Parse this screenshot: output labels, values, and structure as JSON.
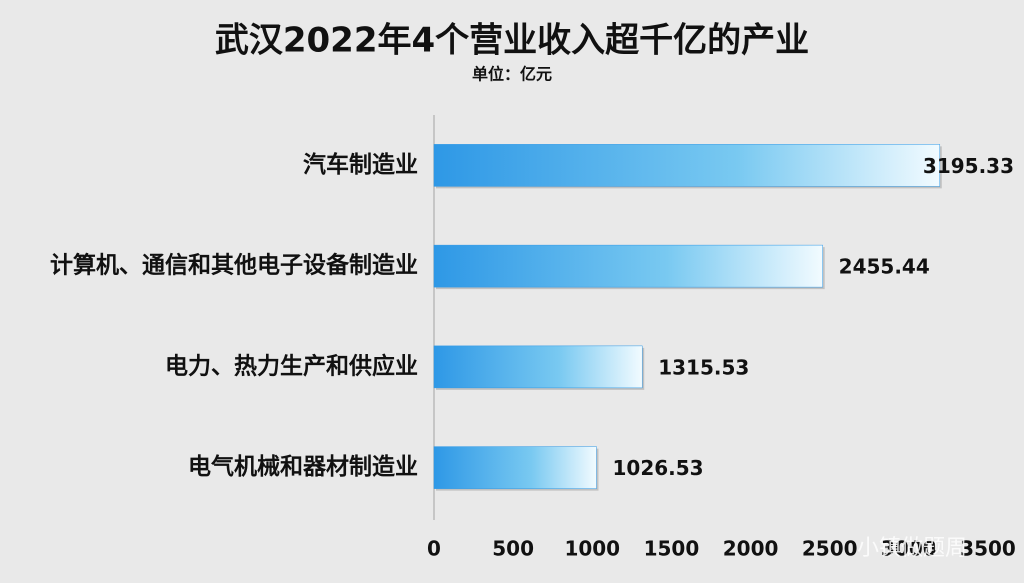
{
  "chart_data": {
    "type": "bar",
    "orientation": "horizontal",
    "title": "武汉2022年4个营业收入超千亿的产业",
    "subtitle": "单位：亿元",
    "categories": [
      "汽车制造业",
      "计算机、通信和其他电子设备制造业",
      "电力、热力生产和供应业",
      "电气机械和器材制造业"
    ],
    "values": [
      3195.33,
      2455.44,
      1315.53,
      1026.53
    ],
    "color": "#2e98e6",
    "xlim": [
      0,
      3500
    ],
    "xticks": [
      0,
      500,
      1000,
      1500,
      2000,
      2500,
      3000,
      3500
    ],
    "grid": false,
    "watermark": "小镇做题周"
  }
}
